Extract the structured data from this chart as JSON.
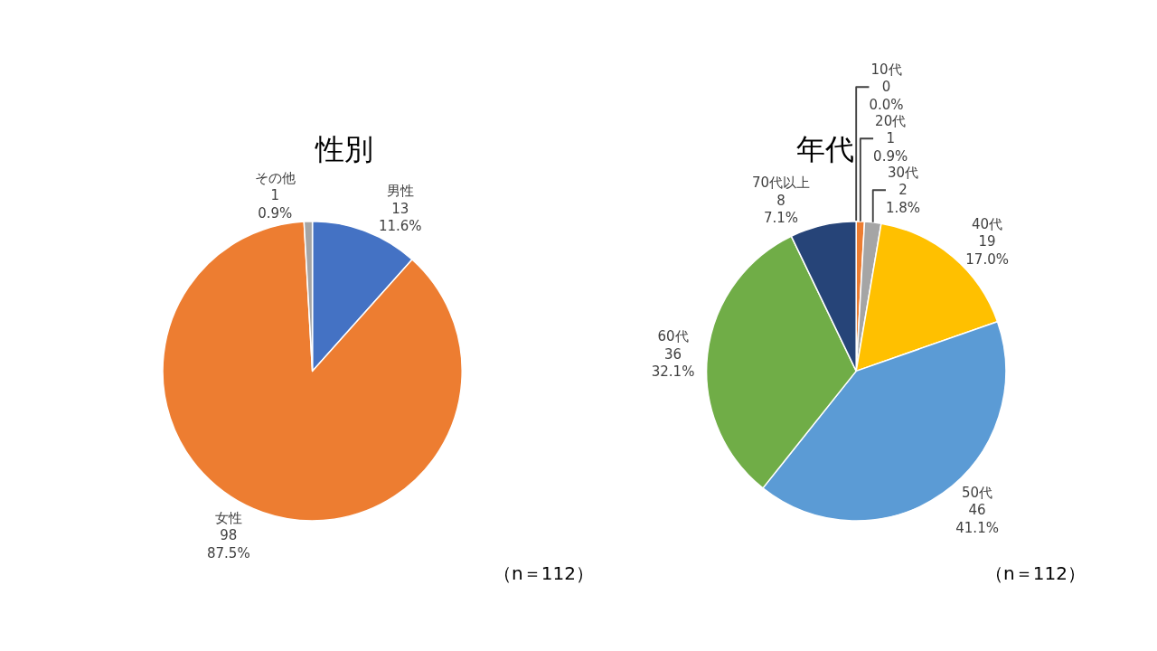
{
  "chart_data": [
    {
      "type": "pie",
      "title": "性別",
      "categories": [
        "男性",
        "女性",
        "その他"
      ],
      "values": [
        13,
        98,
        1
      ],
      "colors": [
        "#4472c4",
        "#ed7d31",
        "#a5a5a5"
      ],
      "value_labels": [
        "13\n11.6%",
        "98\n87.5%",
        "1\n0.9%"
      ],
      "annotations": [
        "（n＝112）"
      ],
      "legend": false
    },
    {
      "type": "pie",
      "title": "年代",
      "categories": [
        "10代",
        "20代",
        "30代",
        "40代",
        "50代",
        "60代",
        "70代以上"
      ],
      "values": [
        0,
        1,
        2,
        19,
        46,
        36,
        8
      ],
      "colors": [
        "#4472c4",
        "#ed7d31",
        "#a5a5a5",
        "#ffc000",
        "#5b9bd5",
        "#70ad47",
        "#264478"
      ],
      "value_labels": [
        "0\n0.0%",
        "1\n0.9%",
        "2\n1.8%",
        "19\n17.0%",
        "46\n41.1%",
        "36\n32.1%",
        "8\n7.1%"
      ],
      "annotations": [
        "（n＝112）"
      ],
      "legend": false
    }
  ]
}
